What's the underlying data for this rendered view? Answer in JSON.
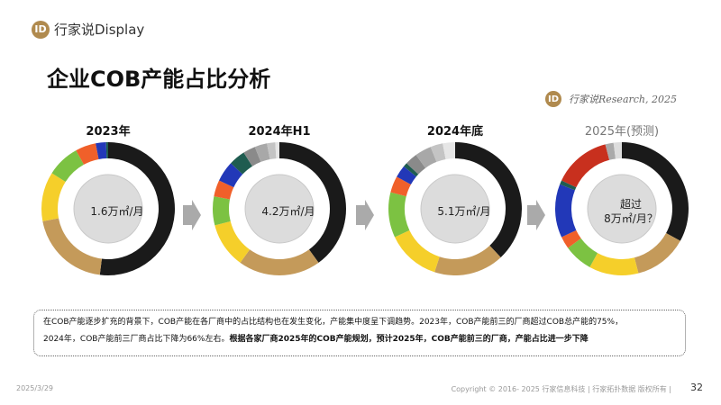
{
  "header": {
    "brand": "行家说Display",
    "logo_glyph": "ID",
    "title": "企业COB产能占比分析",
    "source": "行家说Research, 2025"
  },
  "chart_data": [
    {
      "type": "pie",
      "title": "2023年",
      "center_label": "1.6万㎡/月",
      "values": [
        52,
        20,
        12,
        8,
        5,
        2.5,
        0.5
      ],
      "colors": [
        "#1a1a1a",
        "#c49a5a",
        "#f5cf2a",
        "#7cc242",
        "#f0602a",
        "#2238b8",
        "#1f5c50"
      ]
    },
    {
      "type": "pie",
      "title": "2024年H1",
      "center_label": "4.2万㎡/月",
      "values": [
        40,
        20,
        11,
        7,
        4,
        5,
        4,
        3,
        3,
        2,
        1
      ],
      "colors": [
        "#1a1a1a",
        "#c49a5a",
        "#f5cf2a",
        "#7cc242",
        "#f0602a",
        "#2238b8",
        "#1f5c50",
        "#8a8a8a",
        "#a8a8a8",
        "#c4c4c4",
        "#e6e6e6"
      ]
    },
    {
      "type": "pie",
      "title": "2024年底",
      "center_label": "5.1万㎡/月",
      "values": [
        38,
        17,
        13,
        11,
        4,
        3,
        1,
        3,
        4,
        3,
        3
      ],
      "colors": [
        "#1a1a1a",
        "#c49a5a",
        "#f5cf2a",
        "#7cc242",
        "#f0602a",
        "#2238b8",
        "#1f5c50",
        "#8a8a8a",
        "#a8a8a8",
        "#c4c4c4",
        "#e6e6e6"
      ]
    },
    {
      "type": "pie",
      "title": "2025年(预测)",
      "center_label_line1": "超过",
      "center_label_line2": "8万㎡/月？",
      "values": [
        33,
        13,
        12,
        7,
        3,
        13,
        1,
        14,
        2,
        2
      ],
      "colors": [
        "#1a1a1a",
        "#c49a5a",
        "#f5cf2a",
        "#7cc242",
        "#f0602a",
        "#2238b8",
        "#1f5c50",
        "#c8301e",
        "#aaaaaa",
        "#dddddd"
      ]
    }
  ],
  "note": {
    "text1": "在COB产能逐步扩充的背景下，COB产能在各厂商中的占比结构也在发生变化，产能集中度呈下调趋势。2023年，COB产能前三的厂商超过COB总产能的75%，",
    "text2": "2024年，COB产能前三厂商占比下降为66%左右。",
    "text3": "根据各家厂商2025年的COB产能规划，预计2025年，COB产能前三的厂商，产能占比进一步下降"
  },
  "footer": {
    "date": "2025/3/29",
    "copyright": "Copyright © 2016- 2025 行家信息科技 | 行家拓扑数据 版权所有 |",
    "page": "32"
  }
}
